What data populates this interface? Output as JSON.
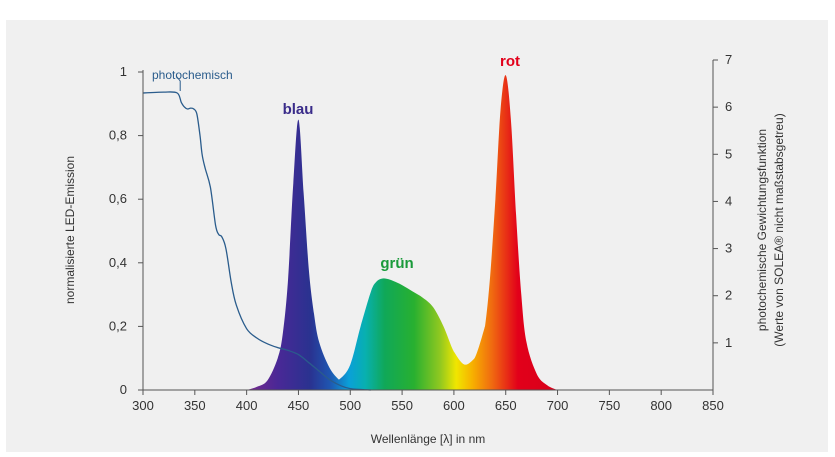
{
  "chart_data": {
    "type": "area",
    "x_axis": {
      "label": "Wellenlänge [λ] in nm",
      "range": [
        300,
        850
      ],
      "ticks": [
        300,
        350,
        400,
        450,
        500,
        550,
        600,
        650,
        700,
        750,
        800,
        850
      ]
    },
    "y_axis_left": {
      "label": "normalisierte LED-Emission",
      "range": [
        0,
        1
      ],
      "ticks": [
        {
          "value": 0,
          "label": "0"
        },
        {
          "value": 0.2,
          "label": "0,2"
        },
        {
          "value": 0.4,
          "label": "0,4"
        },
        {
          "value": 0.6,
          "label": "0,6"
        },
        {
          "value": 0.8,
          "label": "0,8"
        },
        {
          "value": 1,
          "label": "1"
        }
      ]
    },
    "y_axis_right": {
      "label_line1": "photochemische Gewichtungsfunktion",
      "label_line2": "(Werte von SOLEA® nicht maßstabsgetreu)",
      "range": [
        0,
        7
      ],
      "ticks": [
        1,
        2,
        3,
        4,
        5,
        6,
        7
      ]
    },
    "series": [
      {
        "name": "blau",
        "color": "#3a2c8a",
        "x": [
          400,
          410,
          420,
          430,
          435,
          440,
          445,
          450,
          455,
          460,
          465,
          470,
          480,
          490,
          500
        ],
        "y": [
          0,
          0.01,
          0.03,
          0.1,
          0.18,
          0.35,
          0.65,
          0.85,
          0.62,
          0.38,
          0.24,
          0.15,
          0.07,
          0.03,
          0.01
        ]
      },
      {
        "name": "grün",
        "color": "#1a9a3a",
        "x": [
          480,
          490,
          500,
          510,
          520,
          525,
          530,
          535,
          540,
          550,
          560,
          570,
          580,
          590,
          600,
          610,
          620,
          630
        ],
        "y": [
          0.02,
          0.035,
          0.08,
          0.2,
          0.31,
          0.34,
          0.35,
          0.35,
          0.345,
          0.33,
          0.31,
          0.29,
          0.26,
          0.2,
          0.12,
          0.08,
          0.1,
          0.2
        ]
      },
      {
        "name": "rot",
        "color": "#e2001a",
        "x": [
          600,
          610,
          620,
          625,
          630,
          635,
          640,
          645,
          650,
          655,
          660,
          665,
          670,
          680,
          690,
          700
        ],
        "y": [
          0.12,
          0.08,
          0.1,
          0.13,
          0.2,
          0.36,
          0.6,
          0.88,
          0.99,
          0.85,
          0.55,
          0.3,
          0.15,
          0.05,
          0.015,
          0
        ]
      }
    ],
    "weighting_function": {
      "name": "photochemisch",
      "color": "#2a5c8c",
      "x": [
        300,
        320,
        333,
        337,
        340,
        343,
        346,
        349,
        352,
        355,
        357,
        360,
        365,
        370,
        373,
        376,
        380,
        385,
        390,
        400,
        410,
        420,
        430,
        440,
        450,
        460,
        470,
        480,
        490,
        500,
        520
      ],
      "y": [
        6.3,
        6.32,
        6.3,
        6.1,
        6.0,
        5.96,
        5.98,
        5.96,
        5.85,
        5.4,
        5.0,
        4.7,
        4.3,
        3.5,
        3.3,
        3.25,
        3.0,
        2.3,
        1.8,
        1.3,
        1.1,
        0.98,
        0.9,
        0.84,
        0.75,
        0.58,
        0.4,
        0.22,
        0.1,
        0.03,
        0
      ]
    },
    "legend": "inline labels",
    "grid": false
  }
}
